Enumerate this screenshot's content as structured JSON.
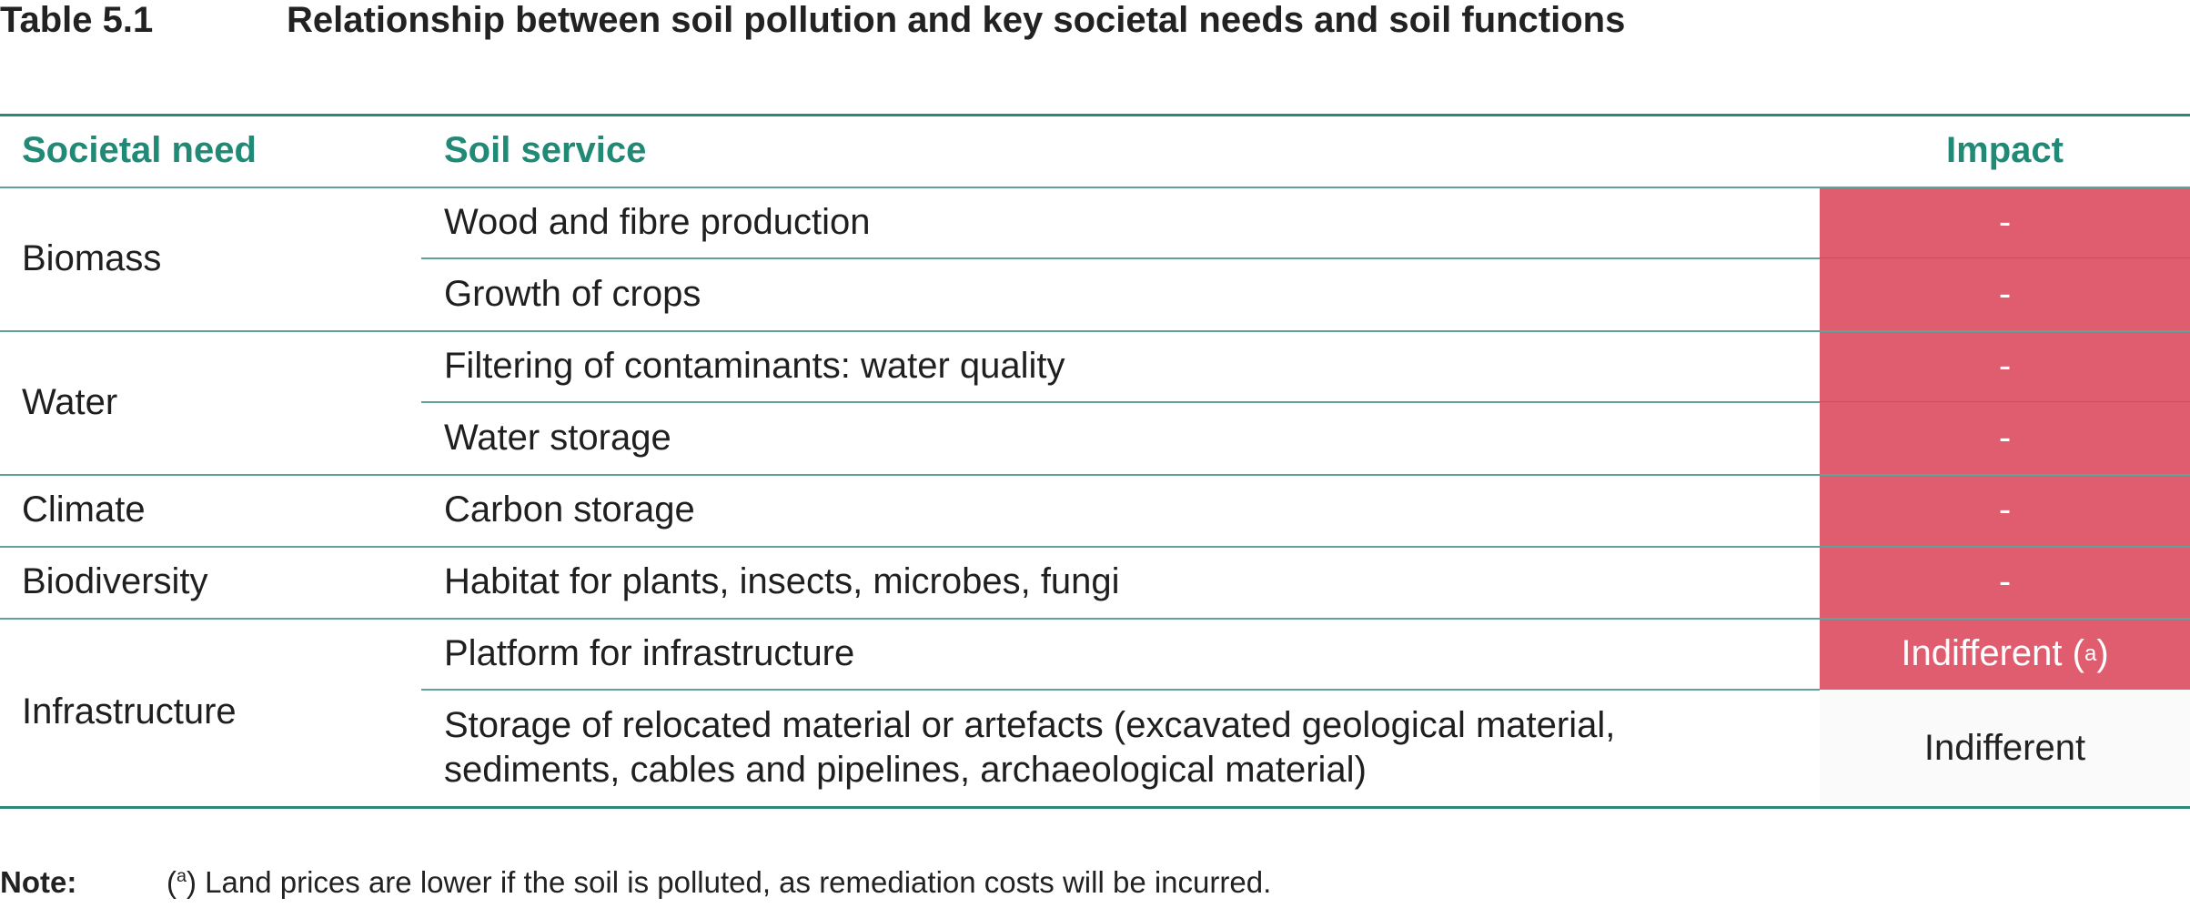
{
  "table": {
    "number": "Table 5.1",
    "title": "Relationship between soil pollution and key societal needs and soil functions",
    "headers": {
      "need": "Societal need",
      "service": "Soil service",
      "impact": "Impact"
    },
    "groups": [
      {
        "need": "Biomass",
        "rows": [
          {
            "service": "Wood and fibre production",
            "impact": "-"
          },
          {
            "service": "Growth of crops",
            "impact": "-"
          }
        ]
      },
      {
        "need": "Water",
        "rows": [
          {
            "service": "Filtering of contaminants: water quality",
            "impact": "-"
          },
          {
            "service": "Water storage",
            "impact": "-"
          }
        ]
      },
      {
        "need": "Climate",
        "rows": [
          {
            "service": "Carbon storage",
            "impact": "-"
          }
        ]
      },
      {
        "need": "Biodiversity",
        "rows": [
          {
            "service": "Habitat for plants, insects, microbes, fungi",
            "impact": "-"
          }
        ]
      },
      {
        "need": "Infrastructure",
        "rows": [
          {
            "service": "Platform for infrastructure",
            "impact": "Indifferent (",
            "impact_sup": "a",
            "impact_tail": ")"
          },
          {
            "service_line1": "Storage of relocated material or artefacts (excavated geological material,",
            "service_line2": "sediments, cables and pipelines, archaeological material)",
            "impact": "Indifferent"
          }
        ]
      }
    ]
  },
  "note": {
    "label": "Note:",
    "open": "(",
    "sup": "a",
    "text": ") Land prices are lower if the soil is polluted, as remediation costs will be incurred."
  },
  "colors": {
    "accent": "#218a76",
    "impact_red": "#e05d6f",
    "rule": "#2a8a78"
  }
}
